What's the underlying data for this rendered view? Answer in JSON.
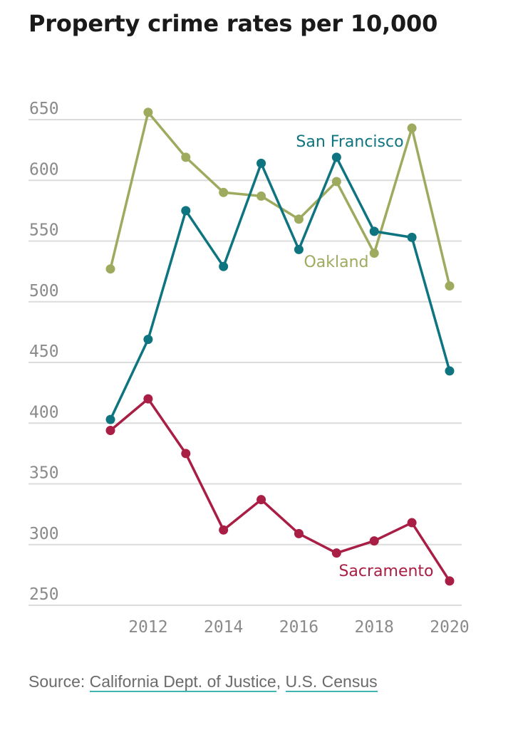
{
  "title": "Property crime rates per 10,000",
  "source": {
    "prefix": "Source: ",
    "links": [
      "California Dept. of Justice",
      "U.S. Census"
    ],
    "separator": ", "
  },
  "chart_data": {
    "type": "line",
    "title": "Property crime rates per 10,000",
    "xlabel": "",
    "ylabel": "",
    "x": [
      2011,
      2012,
      2013,
      2014,
      2015,
      2016,
      2017,
      2018,
      2019,
      2020
    ],
    "x_ticks": [
      "2012",
      "2014",
      "2016",
      "2018",
      "2020"
    ],
    "y_ticks": [
      "650",
      "600",
      "550",
      "500",
      "450",
      "400",
      "350",
      "300",
      "250"
    ],
    "ylim": [
      250,
      650
    ],
    "grid": true,
    "series": [
      {
        "name": "Oakland",
        "color": "#9eab5f",
        "values": [
          527,
          656,
          619,
          590,
          587,
          568,
          599,
          540,
          643,
          513
        ]
      },
      {
        "name": "San Francisco",
        "color": "#0e7480",
        "values": [
          403,
          469,
          575,
          529,
          614,
          543,
          619,
          558,
          553,
          443
        ]
      },
      {
        "name": "Sacramento",
        "color": "#a91e45",
        "values": [
          394,
          420,
          375,
          312,
          337,
          309,
          293,
          303,
          318,
          270
        ]
      }
    ]
  }
}
